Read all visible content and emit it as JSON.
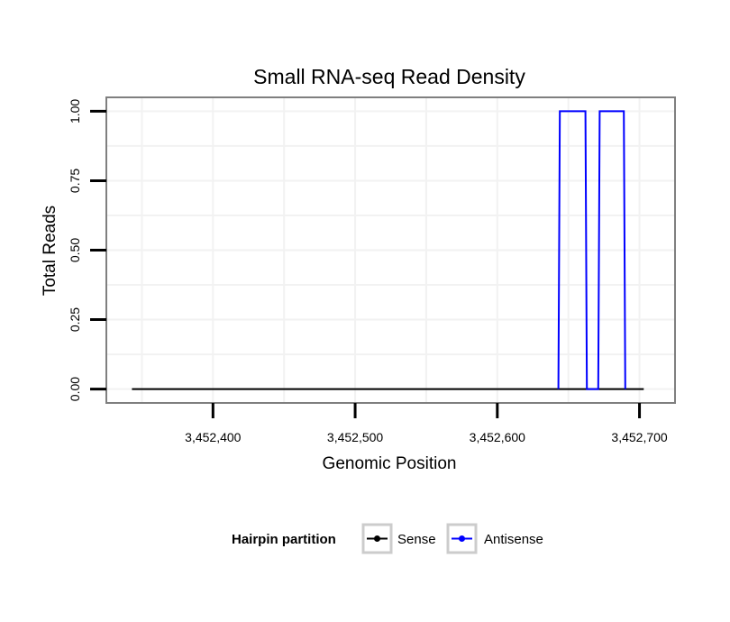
{
  "chart_data": {
    "type": "line",
    "title": "Small RNA-seq Read Density",
    "xlabel": "Genomic Position",
    "ylabel": "Total Reads",
    "xlim": [
      3452325,
      3452725
    ],
    "ylim": [
      -0.05,
      1.05
    ],
    "x_ticks": [
      3452400,
      3452500,
      3452600,
      3452700
    ],
    "x_tick_labels": [
      "3,452,400",
      "3,452,500",
      "3,452,600",
      "3,452,700"
    ],
    "y_ticks": [
      0,
      0.25,
      0.5,
      0.75,
      1
    ],
    "y_tick_labels": [
      "0.00",
      "0.25",
      "0.50",
      "0.75",
      "1.00"
    ],
    "grid": true,
    "legend": {
      "title": "Hairpin partition",
      "placement": "bottom"
    },
    "series": [
      {
        "name": "Sense",
        "color": "#000000",
        "x": [
          3452343,
          3452703
        ],
        "y": [
          0,
          0
        ]
      },
      {
        "name": "Antisense",
        "color": "#0000ff",
        "x": [
          3452643,
          3452644,
          3452662,
          3452663,
          3452671,
          3452672,
          3452689,
          3452690
        ],
        "y": [
          0,
          1,
          1,
          0,
          0,
          1,
          1,
          0
        ]
      }
    ]
  }
}
